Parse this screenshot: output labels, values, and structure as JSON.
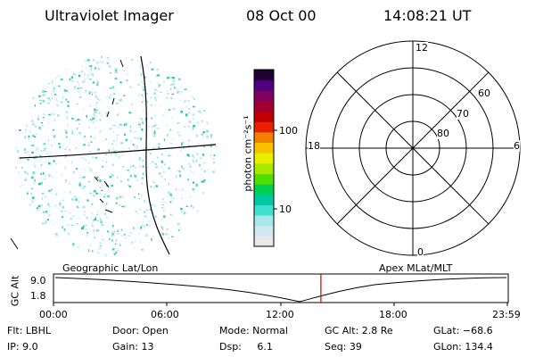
{
  "header": {
    "instrument": "Ultraviolet Imager",
    "date": "08 Oct 00",
    "time": "14:08:21 UT"
  },
  "colorbar": {
    "unit_label": "photon cm⁻²s⁻¹",
    "ticks": [
      "100",
      "10"
    ],
    "colors": [
      "#e8e8e8",
      "#d0e8f0",
      "#a8e8e8",
      "#40e0d0",
      "#00c8a0",
      "#00d050",
      "#50e000",
      "#a8e800",
      "#e8f000",
      "#f8c000",
      "#f08000",
      "#e82000",
      "#c00000",
      "#a00030",
      "#800060",
      "#500080",
      "#200030"
    ]
  },
  "polar_plot": {
    "mlt_labels": {
      "top": "12",
      "bottom": "0",
      "left": "18",
      "right": "6"
    },
    "lat_labels": [
      "60",
      "70",
      "80"
    ]
  },
  "timeline": {
    "left_title": "Geographic Lat/Lon",
    "right_title": "Apex MLat/MLT",
    "y_axis_title": "GC Alt",
    "y_ticks": [
      "9.0",
      "1.8"
    ],
    "x_ticks": [
      "00:00",
      "06:00",
      "12:00",
      "18:00",
      "23:59"
    ],
    "marker_color": "#cc0000"
  },
  "status": {
    "flt": "Flt: LBHL",
    "ip": "IP:  9.0",
    "door": "Door: Open",
    "gain": "Gain: 13",
    "mode": "Mode: Normal",
    "dsp": "Dsp:     6.1",
    "gc_alt": "GC Alt: 2.8 Re",
    "seq": "Seq: 39",
    "glat": "GLat: −68.6",
    "glon": "GLon: 134.4"
  }
}
